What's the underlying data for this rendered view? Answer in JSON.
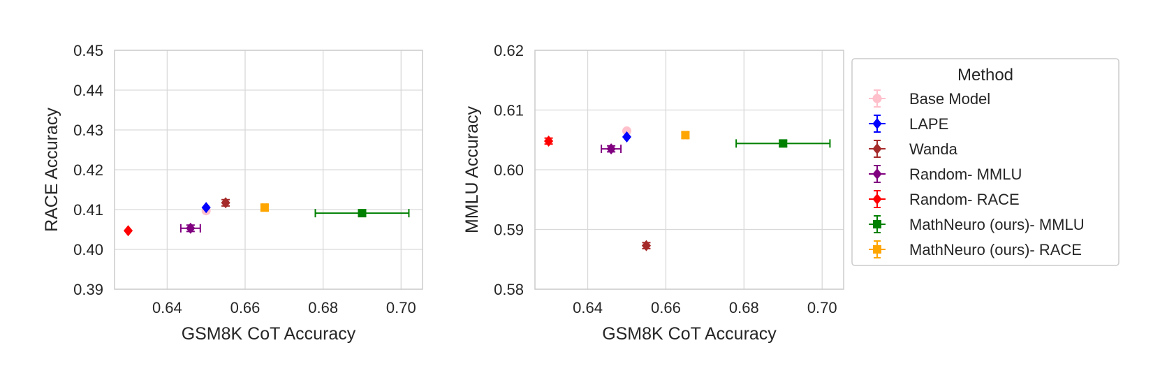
{
  "legend": {
    "title": "Method",
    "position": "right"
  },
  "series_styles": [
    {
      "name": "Base Model",
      "color": "#ffc0cb",
      "marker": "circle"
    },
    {
      "name": "LAPE",
      "color": "#0000ff",
      "marker": "diamond"
    },
    {
      "name": "Wanda",
      "color": "#a52a2a",
      "marker": "diamond"
    },
    {
      "name": "Random- MMLU",
      "color": "#800080",
      "marker": "diamond"
    },
    {
      "name": "Random- RACE",
      "color": "#ff0000",
      "marker": "diamond"
    },
    {
      "name": "MathNeuro (ours)- MMLU",
      "color": "#008000",
      "marker": "square"
    },
    {
      "name": "MathNeuro (ours)- RACE",
      "color": "#ffa500",
      "marker": "square"
    }
  ],
  "chart_data": [
    {
      "type": "scatter",
      "title": "",
      "xlabel": "GSM8K CoT Accuracy",
      "ylabel": "RACE Accuracy",
      "xlim": [
        0.6265,
        0.7055
      ],
      "ylim": [
        0.39,
        0.45
      ],
      "xticks": [
        "0.64",
        "0.66",
        "0.68",
        "0.70"
      ],
      "yticks": [
        "0.39",
        "0.40",
        "0.41",
        "0.42",
        "0.43",
        "0.44",
        "0.45"
      ],
      "grid": true,
      "series": [
        {
          "name": "Base Model",
          "x": 0.65,
          "y": 0.4097,
          "xerr": 0.0,
          "yerr": 0.0
        },
        {
          "name": "LAPE",
          "x": 0.65,
          "y": 0.4105,
          "xerr": 0.0,
          "yerr": 0.0
        },
        {
          "name": "Wanda",
          "x": 0.655,
          "y": 0.4117,
          "xerr": 0.0,
          "yerr": 0.0008
        },
        {
          "name": "Random- MMLU",
          "x": 0.646,
          "y": 0.4053,
          "xerr": 0.0025,
          "yerr": 0.0008
        },
        {
          "name": "Random- RACE",
          "x": 0.63,
          "y": 0.4047,
          "xerr": 0.0,
          "yerr": 0.0
        },
        {
          "name": "MathNeuro (ours)- MMLU",
          "x": 0.69,
          "y": 0.4091,
          "xerr": 0.012,
          "yerr": 0.0008
        },
        {
          "name": "MathNeuro (ours)- RACE",
          "x": 0.665,
          "y": 0.4105,
          "xerr": 0.0005,
          "yerr": 0.0008
        }
      ]
    },
    {
      "type": "scatter",
      "title": "",
      "xlabel": "GSM8K CoT Accuracy",
      "ylabel": "MMLU Accuracy",
      "xlim": [
        0.6265,
        0.7055
      ],
      "ylim": [
        0.58,
        0.62
      ],
      "xticks": [
        "0.64",
        "0.66",
        "0.68",
        "0.70"
      ],
      "yticks": [
        "0.58",
        "0.59",
        "0.60",
        "0.61",
        "0.62"
      ],
      "grid": true,
      "series": [
        {
          "name": "Base Model",
          "x": 0.65,
          "y": 0.6065,
          "xerr": 0.0,
          "yerr": 0.0
        },
        {
          "name": "LAPE",
          "x": 0.65,
          "y": 0.6055,
          "xerr": 0.0,
          "yerr": 0.0
        },
        {
          "name": "Wanda",
          "x": 0.655,
          "y": 0.5873,
          "xerr": 0.0,
          "yerr": 0.0005
        },
        {
          "name": "Random- MMLU",
          "x": 0.646,
          "y": 0.6035,
          "xerr": 0.0025,
          "yerr": 0.0005
        },
        {
          "name": "Random- RACE",
          "x": 0.63,
          "y": 0.6048,
          "xerr": 0.0,
          "yerr": 0.0005
        },
        {
          "name": "MathNeuro (ours)- MMLU",
          "x": 0.69,
          "y": 0.6044,
          "xerr": 0.012,
          "yerr": 0.0005
        },
        {
          "name": "MathNeuro (ours)- RACE",
          "x": 0.665,
          "y": 0.6058,
          "xerr": 0.0005,
          "yerr": 0.0005
        }
      ]
    }
  ]
}
